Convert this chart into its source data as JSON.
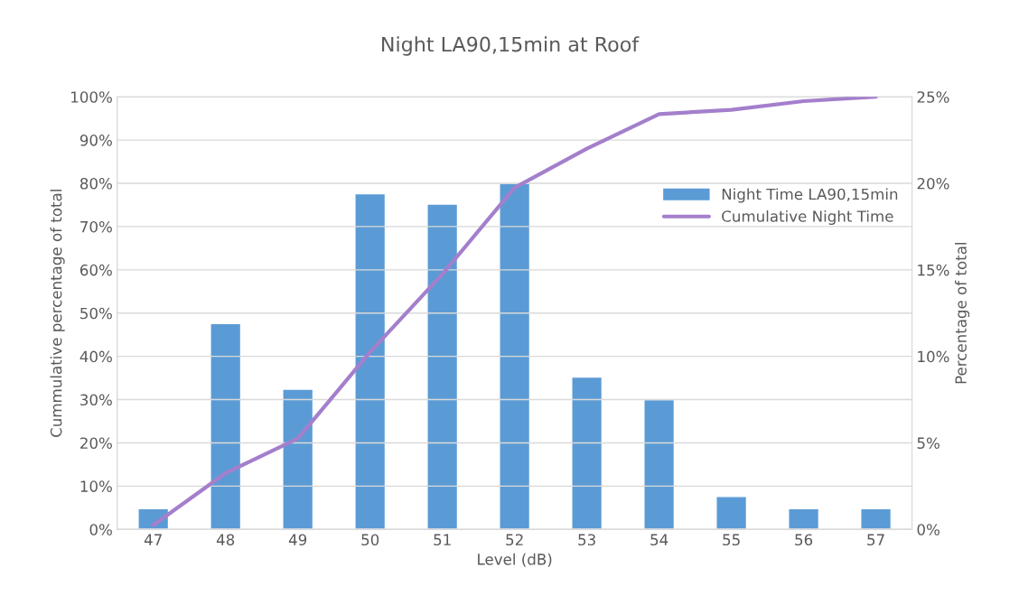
{
  "chart_data": {
    "type": "bar",
    "title": "Night LA90,15min at Roof",
    "xlabel": "Level (dB)",
    "ylabel": "Cummulative percentage of total",
    "y2label": "Percentage of total",
    "categories": [
      "47",
      "48",
      "49",
      "50",
      "51",
      "52",
      "53",
      "54",
      "55",
      "56",
      "57"
    ],
    "series": [
      {
        "name": "Night Time LA90,15min",
        "axis": "y2",
        "color": "#5b9bd5",
        "values": [
          1.2,
          11.9,
          8.1,
          19.4,
          18.8,
          20,
          8.8,
          7.5,
          1.9,
          1.2,
          1.2
        ]
      },
      {
        "name": "Cumulative Night Time",
        "type": "line",
        "axis": "y",
        "color": "#a47fcc",
        "values": [
          1,
          13,
          21,
          41,
          59,
          79,
          88,
          96,
          97,
          99,
          100
        ]
      }
    ],
    "ylim": [
      0,
      100
    ],
    "yticks": [
      {
        "value": 0,
        "label": "0%"
      },
      {
        "value": 10,
        "label": "10%"
      },
      {
        "value": 20,
        "label": "20%"
      },
      {
        "value": 30,
        "label": "30%"
      },
      {
        "value": 40,
        "label": "40%"
      },
      {
        "value": 50,
        "label": "50%"
      },
      {
        "value": 60,
        "label": "60%"
      },
      {
        "value": 70,
        "label": "70%"
      },
      {
        "value": 80,
        "label": "80%"
      },
      {
        "value": 90,
        "label": "90%"
      },
      {
        "value": 100,
        "label": "100%"
      }
    ],
    "y2lim": [
      0,
      25
    ],
    "y2ticks": [
      {
        "value": 0,
        "label": "0%"
      },
      {
        "value": 5,
        "label": "5%"
      },
      {
        "value": 10,
        "label": "10%"
      },
      {
        "value": 15,
        "label": "15%"
      },
      {
        "value": 20,
        "label": "20%"
      },
      {
        "value": 25,
        "label": "25%"
      }
    ],
    "grid": true,
    "legend": "right",
    "marker": "none",
    "line_style": "solid"
  }
}
